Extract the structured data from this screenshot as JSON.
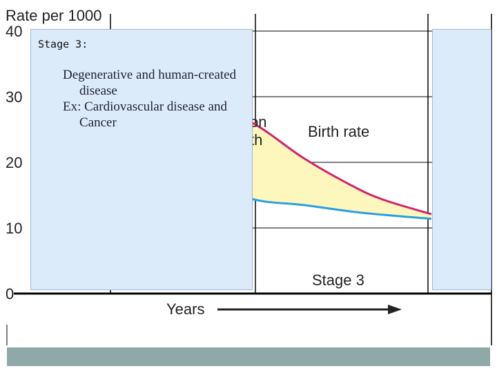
{
  "chart_data": {
    "type": "line",
    "ylabel": "Rate per 1000",
    "xlabel": "Years",
    "ylim": [
      0,
      40
    ],
    "yticks": [
      "40",
      "30",
      "20",
      "10",
      "0"
    ],
    "grid": true,
    "series": [
      {
        "name": "Birth rate",
        "color": "#d0246c",
        "x": [
          0.0,
          0.3,
          0.45,
          0.6,
          0.75,
          0.85,
          1.0
        ],
        "y": [
          31.0,
          29.0,
          25.8,
          20.7,
          16.5,
          14.3,
          12.1
        ]
      },
      {
        "name": "",
        "color": "#2a9fe0",
        "x": [
          0.0,
          0.3,
          0.45,
          0.6,
          0.75,
          0.85,
          1.0
        ],
        "y": [
          17.5,
          16.8,
          14.3,
          13.5,
          12.5,
          12.0,
          11.4
        ]
      }
    ],
    "stage_label": "Stage 3",
    "partial_labels": [
      "on",
      "th"
    ]
  },
  "callout": {
    "title": "Stage 3:",
    "lines": [
      "Degenerative and human-created disease",
      "Ex: Cardiovascular disease and Cancer"
    ]
  },
  "colors": {
    "callout_fill": "#dcebfa",
    "fill_between": "#fdf6bd",
    "birth": "#d0246c",
    "death": "#2a9fe0",
    "footer": "#8fa8a8"
  }
}
